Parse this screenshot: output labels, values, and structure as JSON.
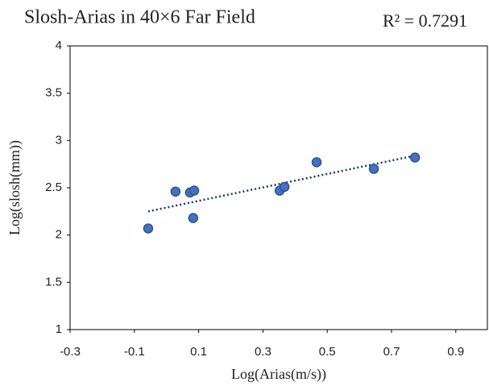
{
  "chart_data": {
    "type": "scatter",
    "title": "Slosh-Arias in 40×6 Far Field",
    "annotation": "R² = 0.7291",
    "x_label": "Log(Arias(m/s))",
    "y_label": "Log(slosh(mm))",
    "x": [
      -0.057,
      0.028,
      0.073,
      0.086,
      0.083,
      0.352,
      0.367,
      0.467,
      0.645,
      0.773
    ],
    "values": [
      2.07,
      2.46,
      2.45,
      2.47,
      2.18,
      2.47,
      2.51,
      2.77,
      2.7,
      2.82
    ],
    "color": "#4472c4",
    "trendline": {
      "x": [
        -0.057,
        0.773
      ],
      "y": [
        2.25,
        2.84
      ],
      "color": "#1f3864"
    },
    "xlim": [
      -0.3,
      1.0
    ],
    "xticks": [
      -0.3,
      -0.1,
      0.1,
      0.3,
      0.5,
      0.7,
      0.9
    ],
    "ylim": [
      1,
      4
    ],
    "yticks": [
      1,
      1.5,
      2,
      2.5,
      3,
      3.5,
      4
    ],
    "grid": false
  }
}
